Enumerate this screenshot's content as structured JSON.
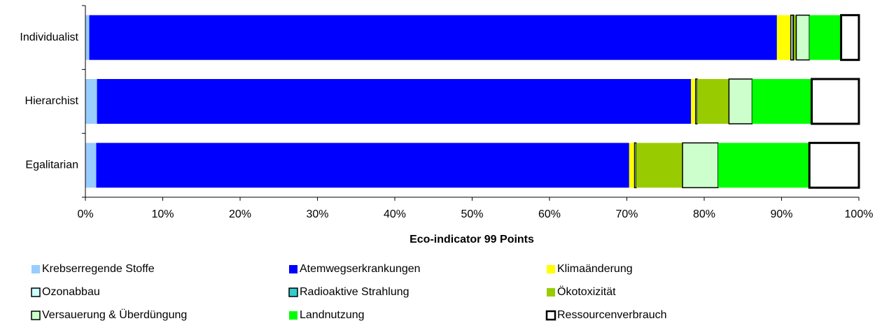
{
  "chart_data": {
    "type": "stacked_barh",
    "xlabel": "Eco-indicator 99 Points",
    "categories": [
      "Individualist",
      "Hierarchist",
      "Egalitarian"
    ],
    "series": [
      {
        "name": "Krebserregende Stoffe",
        "color": "#99ccff",
        "values": [
          0.5,
          1.5,
          1.4
        ]
      },
      {
        "name": "Atemwegserkrankungen",
        "color": "#0000ff",
        "values": [
          88.9,
          76.8,
          68.9
        ]
      },
      {
        "name": "Klimaänderung",
        "color": "#ffff00",
        "values": [
          1.8,
          0.6,
          0.7
        ]
      },
      {
        "name": "Ozonabbau",
        "color": "#ccffff",
        "values": [
          0.3,
          0.2,
          0.2
        ]
      },
      {
        "name": "Radioaktive Strahlung",
        "color": "#33cccc",
        "values": [
          0.1,
          0,
          0
        ]
      },
      {
        "name": "Ökotoxizität",
        "color": "#99cc00",
        "values": [
          0.3,
          4.1,
          6.0
        ]
      },
      {
        "name": "Versauerung & Überdüngung",
        "color": "#ccffcc",
        "values": [
          1.7,
          3.0,
          4.6
        ]
      },
      {
        "name": "Landnutzung",
        "color": "#00ff00",
        "values": [
          4.1,
          7.7,
          11.8
        ]
      },
      {
        "name": "Ressourcenverbrauch",
        "color": "#ffffff",
        "values": [
          2.3,
          6.1,
          6.4
        ]
      }
    ],
    "xlim": [
      0,
      100
    ],
    "xticks": [
      {
        "value": 0,
        "label": "0%"
      },
      {
        "value": 10,
        "label": "10%"
      },
      {
        "value": 20,
        "label": "20%"
      },
      {
        "value": 30,
        "label": "30%"
      },
      {
        "value": 40,
        "label": "40%"
      },
      {
        "value": 50,
        "label": "50%"
      },
      {
        "value": 60,
        "label": "60%"
      },
      {
        "value": 70,
        "label": "70%"
      },
      {
        "value": 80,
        "label": "80%"
      },
      {
        "value": 90,
        "label": "90%"
      },
      {
        "value": 100,
        "label": "100%"
      }
    ]
  }
}
